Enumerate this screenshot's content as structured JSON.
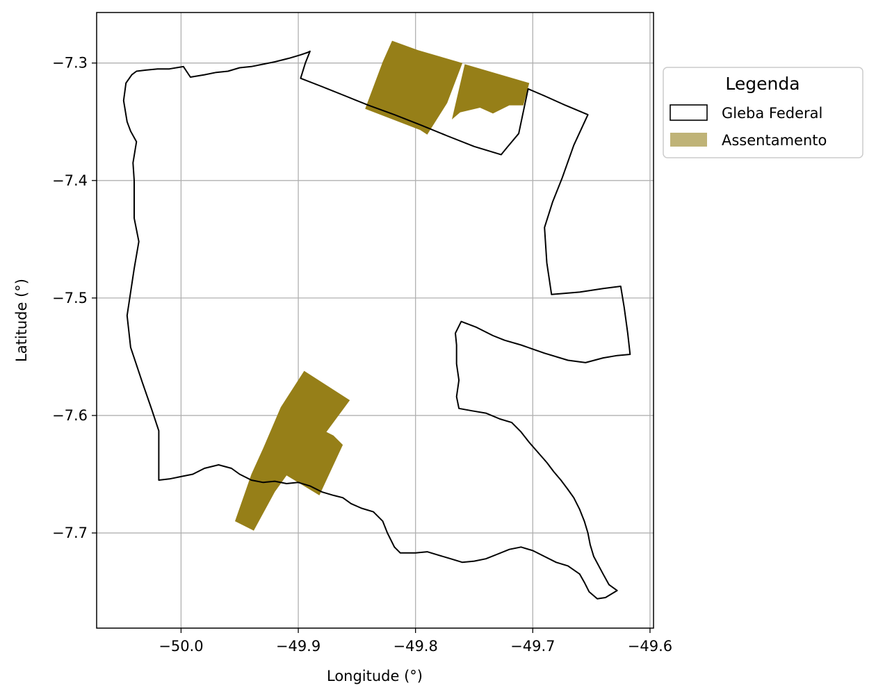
{
  "chart_data": {
    "type": "map",
    "title": "",
    "xlabel": "Longitude (°)",
    "ylabel": "Latitude (°)",
    "xlim": [
      -50.072,
      -49.597
    ],
    "ylim": [
      -7.781,
      -7.257
    ],
    "grid": true,
    "x_ticks": [
      {
        "value": -50.0,
        "label": "−50.0"
      },
      {
        "value": -49.9,
        "label": "−49.9"
      },
      {
        "value": -49.8,
        "label": "−49.8"
      },
      {
        "value": -49.7,
        "label": "−49.7"
      },
      {
        "value": -49.6,
        "label": "−49.6"
      }
    ],
    "y_ticks": [
      {
        "value": -7.3,
        "label": "−7.3"
      },
      {
        "value": -7.4,
        "label": "−7.4"
      },
      {
        "value": -7.5,
        "label": "−7.5"
      },
      {
        "value": -7.6,
        "label": "−7.6"
      },
      {
        "value": -7.7,
        "label": "−7.7"
      }
    ],
    "legend": {
      "title": "Legenda",
      "placement": "outside-right-top",
      "entries": [
        {
          "label": "Gleba Federal",
          "style": "outline",
          "color": "#000000"
        },
        {
          "label": "Assentamento",
          "style": "fill",
          "color": "#bfb377"
        }
      ]
    },
    "gleba_federal": {
      "name": "Gleba Federal",
      "stroke": "#000000",
      "coordinates": [
        [
          -49.892,
          -7.291
        ],
        [
          -49.898,
          -7.293
        ],
        [
          -49.908,
          -7.296
        ],
        [
          -49.92,
          -7.299
        ],
        [
          -49.93,
          -7.301
        ],
        [
          -49.94,
          -7.303
        ],
        [
          -49.95,
          -7.304
        ],
        [
          -49.96,
          -7.307
        ],
        [
          -49.97,
          -7.308
        ],
        [
          -49.98,
          -7.31
        ],
        [
          -49.992,
          -7.312
        ],
        [
          -49.998,
          -7.303
        ],
        [
          -50.01,
          -7.305
        ],
        [
          -50.02,
          -7.305
        ],
        [
          -50.03,
          -7.306
        ],
        [
          -50.038,
          -7.307
        ],
        [
          -50.042,
          -7.31
        ],
        [
          -50.047,
          -7.317
        ],
        [
          -50.049,
          -7.332
        ],
        [
          -50.046,
          -7.35
        ],
        [
          -50.043,
          -7.358
        ],
        [
          -50.038,
          -7.367
        ],
        [
          -50.041,
          -7.385
        ],
        [
          -50.04,
          -7.4
        ],
        [
          -50.04,
          -7.42
        ],
        [
          -50.04,
          -7.432
        ],
        [
          -50.036,
          -7.452
        ],
        [
          -50.04,
          -7.475
        ],
        [
          -50.046,
          -7.515
        ],
        [
          -50.043,
          -7.542
        ],
        [
          -50.033,
          -7.572
        ],
        [
          -50.025,
          -7.595
        ],
        [
          -50.019,
          -7.613
        ],
        [
          -50.019,
          -7.63
        ],
        [
          -50.019,
          -7.655
        ],
        [
          -50.01,
          -7.654
        ],
        [
          -50.0,
          -7.652
        ],
        [
          -49.99,
          -7.65
        ],
        [
          -49.98,
          -7.645
        ],
        [
          -49.968,
          -7.642
        ],
        [
          -49.957,
          -7.645
        ],
        [
          -49.95,
          -7.65
        ],
        [
          -49.94,
          -7.655
        ],
        [
          -49.93,
          -7.657
        ],
        [
          -49.92,
          -7.656
        ],
        [
          -49.91,
          -7.658
        ],
        [
          -49.9,
          -7.657
        ],
        [
          -49.89,
          -7.66
        ],
        [
          -49.88,
          -7.665
        ],
        [
          -49.87,
          -7.668
        ],
        [
          -49.862,
          -7.67
        ],
        [
          -49.855,
          -7.675
        ],
        [
          -49.846,
          -7.679
        ],
        [
          -49.836,
          -7.682
        ],
        [
          -49.828,
          -7.69
        ],
        [
          -49.824,
          -7.7
        ],
        [
          -49.818,
          -7.712
        ],
        [
          -49.813,
          -7.717
        ],
        [
          -49.8,
          -7.717
        ],
        [
          -49.79,
          -7.716
        ],
        [
          -49.78,
          -7.719
        ],
        [
          -49.77,
          -7.722
        ],
        [
          -49.76,
          -7.725
        ],
        [
          -49.75,
          -7.724
        ],
        [
          -49.74,
          -7.722
        ],
        [
          -49.73,
          -7.718
        ],
        [
          -49.72,
          -7.714
        ],
        [
          -49.71,
          -7.712
        ],
        [
          -49.7,
          -7.715
        ],
        [
          -49.69,
          -7.72
        ],
        [
          -49.68,
          -7.725
        ],
        [
          -49.67,
          -7.728
        ],
        [
          -49.66,
          -7.735
        ],
        [
          -49.656,
          -7.742
        ],
        [
          -49.652,
          -7.75
        ],
        [
          -49.645,
          -7.756
        ],
        [
          -49.638,
          -7.755
        ],
        [
          -49.628,
          -7.749
        ],
        [
          -49.635,
          -7.744
        ],
        [
          -49.64,
          -7.735
        ],
        [
          -49.648,
          -7.72
        ],
        [
          -49.651,
          -7.71
        ],
        [
          -49.653,
          -7.7
        ],
        [
          -49.656,
          -7.69
        ],
        [
          -49.66,
          -7.68
        ],
        [
          -49.665,
          -7.67
        ],
        [
          -49.67,
          -7.663
        ],
        [
          -49.676,
          -7.655
        ],
        [
          -49.682,
          -7.648
        ],
        [
          -49.688,
          -7.64
        ],
        [
          -49.695,
          -7.632
        ],
        [
          -49.703,
          -7.623
        ],
        [
          -49.71,
          -7.614
        ],
        [
          -49.718,
          -7.606
        ],
        [
          -49.728,
          -7.603
        ],
        [
          -49.74,
          -7.598
        ],
        [
          -49.752,
          -7.596
        ],
        [
          -49.763,
          -7.594
        ],
        [
          -49.765,
          -7.584
        ],
        [
          -49.763,
          -7.57
        ],
        [
          -49.765,
          -7.556
        ],
        [
          -49.765,
          -7.54
        ],
        [
          -49.766,
          -7.53
        ],
        [
          -49.761,
          -7.52
        ],
        [
          -49.748,
          -7.525
        ],
        [
          -49.734,
          -7.532
        ],
        [
          -49.724,
          -7.536
        ],
        [
          -49.71,
          -7.54
        ],
        [
          -49.69,
          -7.547
        ],
        [
          -49.67,
          -7.553
        ],
        [
          -49.655,
          -7.555
        ],
        [
          -49.64,
          -7.551
        ],
        [
          -49.628,
          -7.549
        ],
        [
          -49.617,
          -7.548
        ],
        [
          -49.619,
          -7.53
        ],
        [
          -49.622,
          -7.508
        ],
        [
          -49.625,
          -7.49
        ],
        [
          -49.64,
          -7.492
        ],
        [
          -49.66,
          -7.495
        ],
        [
          -49.684,
          -7.497
        ],
        [
          -49.688,
          -7.47
        ],
        [
          -49.69,
          -7.44
        ],
        [
          -49.683,
          -7.418
        ],
        [
          -49.675,
          -7.398
        ],
        [
          -49.665,
          -7.37
        ],
        [
          -49.653,
          -7.344
        ],
        [
          -49.672,
          -7.336
        ],
        [
          -49.69,
          -7.328
        ],
        [
          -49.704,
          -7.322
        ],
        [
          -49.712,
          -7.36
        ],
        [
          -49.722,
          -7.372
        ],
        [
          -49.727,
          -7.378
        ],
        [
          -49.75,
          -7.371
        ],
        [
          -49.773,
          -7.362
        ],
        [
          -49.795,
          -7.353
        ],
        [
          -49.818,
          -7.344
        ],
        [
          -49.84,
          -7.336
        ],
        [
          -49.86,
          -7.328
        ],
        [
          -49.88,
          -7.32
        ],
        [
          -49.898,
          -7.313
        ],
        [
          -49.894,
          -7.3
        ],
        [
          -49.89,
          -7.29
        ],
        [
          -49.892,
          -7.291
        ]
      ]
    },
    "assentamentos": [
      {
        "name": "Assentamento",
        "fill": "#967f18",
        "coordinates": [
          [
            -49.843,
            -7.339
          ],
          [
            -49.828,
            -7.299
          ],
          [
            -49.82,
            -7.281
          ],
          [
            -49.798,
            -7.289
          ],
          [
            -49.76,
            -7.3
          ],
          [
            -49.773,
            -7.334
          ],
          [
            -49.79,
            -7.361
          ],
          [
            -49.796,
            -7.357
          ],
          [
            -49.843,
            -7.339
          ]
        ]
      },
      {
        "name": "Assentamento",
        "fill": "#967f18",
        "coordinates": [
          [
            -49.769,
            -7.348
          ],
          [
            -49.758,
            -7.301
          ],
          [
            -49.703,
            -7.317
          ],
          [
            -49.708,
            -7.336
          ],
          [
            -49.72,
            -7.336
          ],
          [
            -49.734,
            -7.343
          ],
          [
            -49.745,
            -7.338
          ],
          [
            -49.762,
            -7.342
          ],
          [
            -49.769,
            -7.348
          ]
        ]
      },
      {
        "name": "Assentamento",
        "fill": "#967f18",
        "coordinates": [
          [
            -49.954,
            -7.69
          ],
          [
            -49.938,
            -7.698
          ],
          [
            -49.92,
            -7.665
          ],
          [
            -49.91,
            -7.651
          ],
          [
            -49.882,
            -7.668
          ],
          [
            -49.862,
            -7.625
          ],
          [
            -49.87,
            -7.617
          ],
          [
            -49.876,
            -7.614
          ],
          [
            -49.856,
            -7.587
          ],
          [
            -49.895,
            -7.562
          ],
          [
            -49.915,
            -7.593
          ],
          [
            -49.93,
            -7.628
          ],
          [
            -49.94,
            -7.65
          ],
          [
            -49.954,
            -7.69
          ]
        ]
      }
    ]
  }
}
